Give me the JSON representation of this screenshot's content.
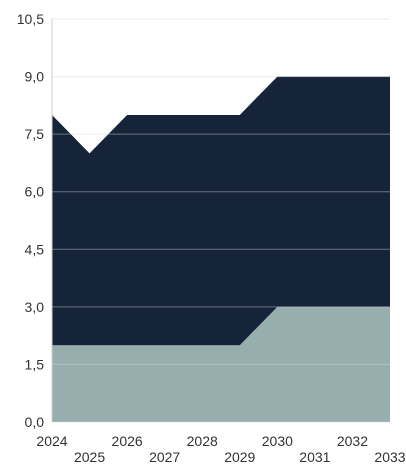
{
  "chart_data": {
    "type": "area",
    "stacked": true,
    "x": [
      "2024",
      "2025",
      "2026",
      "2027",
      "2028",
      "2029",
      "2030",
      "2031",
      "2032",
      "2033"
    ],
    "x_tick_labels": [
      "2024",
      "2025",
      "2026",
      "2027",
      "2028",
      "2029",
      "2030",
      "2031",
      "2032",
      "2033"
    ],
    "y_tick_labels": [
      "0,0",
      "1,5",
      "3,0",
      "4,5",
      "6,0",
      "7,5",
      "9,0",
      "10,5"
    ],
    "series": [
      {
        "values": [
          2,
          2,
          2,
          2,
          2,
          2,
          3,
          3,
          3,
          3
        ],
        "color": "#97aeaf"
      },
      {
        "values": [
          6,
          5,
          6,
          6,
          6,
          6,
          6,
          6,
          6,
          6
        ],
        "color": "#16243a"
      }
    ],
    "title": "",
    "xlabel": "",
    "ylabel": "",
    "ylim": [
      0,
      10.5
    ],
    "y_ticks": [
      0,
      1.5,
      3,
      4.5,
      6,
      7.5,
      9,
      10.5
    ],
    "grid": true,
    "legend": "none"
  }
}
